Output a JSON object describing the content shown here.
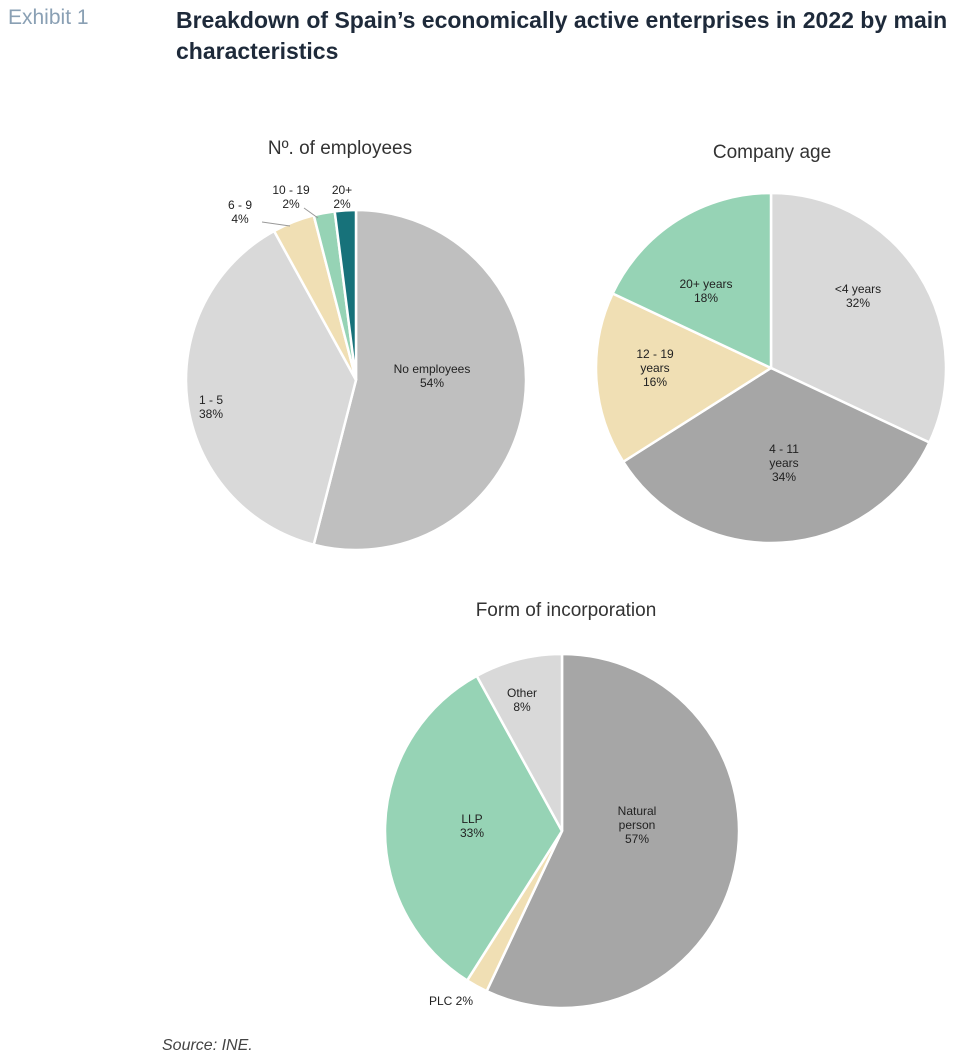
{
  "header": {
    "exhibit": "Exhibit 1",
    "title": "Breakdown of Spain’s economically active enterprises in 2022 by main characteristics"
  },
  "source": "Source: INE.",
  "colors": {
    "light_gray": "#d9d9d9",
    "mid_gray": "#bfbfbf",
    "dark_gray": "#a6a6a6",
    "beige": "#f0dfb4",
    "green": "#96d3b5",
    "teal": "#17727a"
  },
  "chart_data": [
    {
      "type": "pie",
      "title": "Nº. of employees",
      "slices": [
        {
          "label": "No employees",
          "value": 54,
          "value_label": "54%",
          "color": "#bfbfbf"
        },
        {
          "label": "1 - 5",
          "value": 38,
          "value_label": "38%",
          "color": "#d9d9d9"
        },
        {
          "label": "6 - 9",
          "value": 4,
          "value_label": "4%",
          "color": "#f0dfb4"
        },
        {
          "label": "10 - 19",
          "value": 2,
          "value_label": "2%",
          "color": "#96d3b5"
        },
        {
          "label": "20+",
          "value": 2,
          "value_label": "2%",
          "color": "#17727a"
        }
      ]
    },
    {
      "type": "pie",
      "title": "Company age",
      "slices": [
        {
          "label": "<4 years",
          "value": 32,
          "value_label": "32%",
          "color": "#d9d9d9"
        },
        {
          "label": "4 - 11 years",
          "value": 34,
          "value_label": "34%",
          "color": "#a6a6a6"
        },
        {
          "label": "12 - 19 years",
          "value": 16,
          "value_label": "16%",
          "color": "#f0dfb4"
        },
        {
          "label": "20+ years",
          "value": 18,
          "value_label": "18%",
          "color": "#96d3b5"
        }
      ]
    },
    {
      "type": "pie",
      "title": "Form of incorporation",
      "slices": [
        {
          "label": "Natural person",
          "value": 57,
          "value_label": "57%",
          "color": "#a6a6a6"
        },
        {
          "label": "PLC",
          "value": 2,
          "value_label": "2%",
          "color": "#f0dfb4"
        },
        {
          "label": "LLP",
          "value": 33,
          "value_label": "33%",
          "color": "#96d3b5"
        },
        {
          "label": "Other",
          "value": 8,
          "value_label": "8%",
          "color": "#d9d9d9"
        }
      ]
    }
  ]
}
